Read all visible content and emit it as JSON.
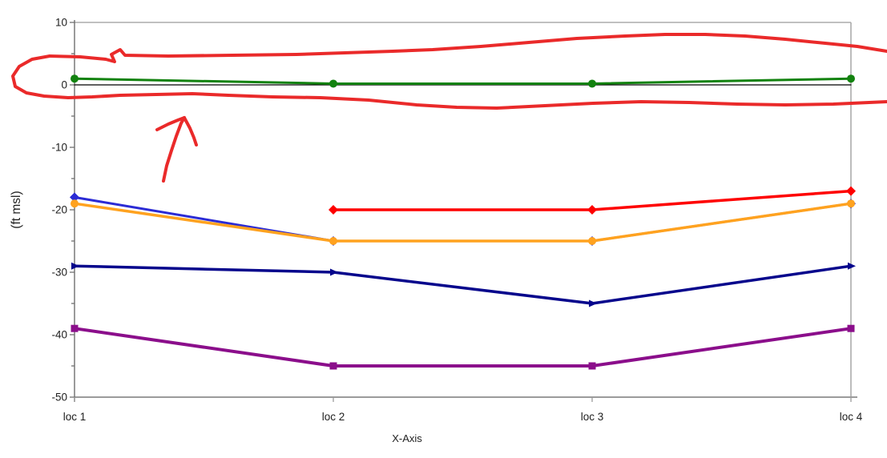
{
  "page": {
    "background": "#FFFFFF"
  },
  "chart_data": {
    "type": "line",
    "title": "",
    "xlabel": "X-Axis",
    "ylabel": "(ft msl)",
    "categories": [
      "loc 1",
      "loc 2",
      "loc 3",
      "loc 4"
    ],
    "ylim": [
      -50,
      10
    ],
    "ytick_major": 10,
    "ytick_minor": 5,
    "yticks": [
      10,
      0,
      -10,
      -20,
      -30,
      -40,
      -50
    ],
    "grid": false,
    "legend": "none",
    "series": [
      {
        "name": "zero-line",
        "color": "#000000",
        "width": 1.2,
        "marker": "none",
        "values": [
          0,
          0,
          0,
          0
        ]
      },
      {
        "name": "green-series",
        "color": "#12820F",
        "width": 3,
        "marker": "circle",
        "values": [
          1,
          0.2,
          0.2,
          1
        ]
      },
      {
        "name": "blue-series",
        "color": "#2B2BD5",
        "width": 3,
        "marker": "diamond",
        "values": [
          -18,
          -25,
          -25,
          -19
        ]
      },
      {
        "name": "orange-series",
        "color": "#FFA21F",
        "width": 3.5,
        "marker": "circle",
        "values": [
          -19,
          -25,
          -25,
          -19
        ]
      },
      {
        "name": "red-series",
        "color": "#FE0000",
        "width": 3.5,
        "marker": "diamond",
        "values": [
          null,
          -20,
          -20,
          -17
        ]
      },
      {
        "name": "navy-series",
        "color": "#05058C",
        "width": 3.5,
        "marker": "triangle-right",
        "values": [
          -29,
          -30,
          -35,
          -29
        ]
      },
      {
        "name": "purple-series",
        "color": "#8B0E8B",
        "width": 4,
        "marker": "square",
        "values": [
          -39,
          -45,
          -45,
          -39
        ]
      }
    ]
  },
  "annotations": {
    "color": "#EA2A2A",
    "width": 4,
    "strokes": {
      "loop-top": [
        [
          62,
          70
        ],
        [
          100,
          71
        ],
        [
          132,
          74
        ],
        [
          143,
          77
        ],
        [
          139,
          68
        ],
        [
          150,
          62
        ],
        [
          156,
          69
        ],
        [
          210,
          70
        ],
        [
          290,
          69
        ],
        [
          370,
          68
        ],
        [
          430,
          66
        ],
        [
          490,
          64
        ],
        [
          540,
          62
        ],
        [
          600,
          58
        ],
        [
          660,
          53
        ],
        [
          720,
          48
        ],
        [
          780,
          45
        ],
        [
          830,
          43
        ],
        [
          880,
          43
        ],
        [
          930,
          45
        ],
        [
          980,
          49
        ],
        [
          1030,
          54
        ],
        [
          1070,
          58
        ],
        [
          1107,
          64
        ]
      ],
      "loop-bottom": [
        [
          62,
          70
        ],
        [
          40,
          74
        ],
        [
          24,
          83
        ],
        [
          16,
          95
        ],
        [
          19,
          108
        ],
        [
          33,
          116
        ],
        [
          55,
          120
        ],
        [
          85,
          122
        ],
        [
          115,
          121
        ],
        [
          150,
          119
        ],
        [
          195,
          118
        ],
        [
          240,
          117
        ],
        [
          285,
          119
        ],
        [
          340,
          121
        ],
        [
          400,
          122
        ],
        [
          460,
          125
        ],
        [
          520,
          131
        ],
        [
          570,
          134
        ],
        [
          620,
          135
        ],
        [
          680,
          132
        ],
        [
          740,
          129
        ],
        [
          800,
          127
        ],
        [
          860,
          128
        ],
        [
          920,
          130
        ],
        [
          980,
          131
        ],
        [
          1040,
          130
        ],
        [
          1107,
          127
        ]
      ],
      "arrow-shaft": [
        [
          204,
          226
        ],
        [
          208,
          207
        ],
        [
          214,
          188
        ],
        [
          220,
          170
        ],
        [
          226,
          154
        ],
        [
          230,
          147
        ]
      ],
      "arrow-barb-left": [
        [
          196,
          162
        ],
        [
          210,
          155
        ],
        [
          222,
          150
        ],
        [
          230,
          147
        ]
      ],
      "arrow-barb-right": [
        [
          230,
          147
        ],
        [
          237,
          160
        ],
        [
          242,
          172
        ],
        [
          245,
          181
        ]
      ]
    }
  }
}
